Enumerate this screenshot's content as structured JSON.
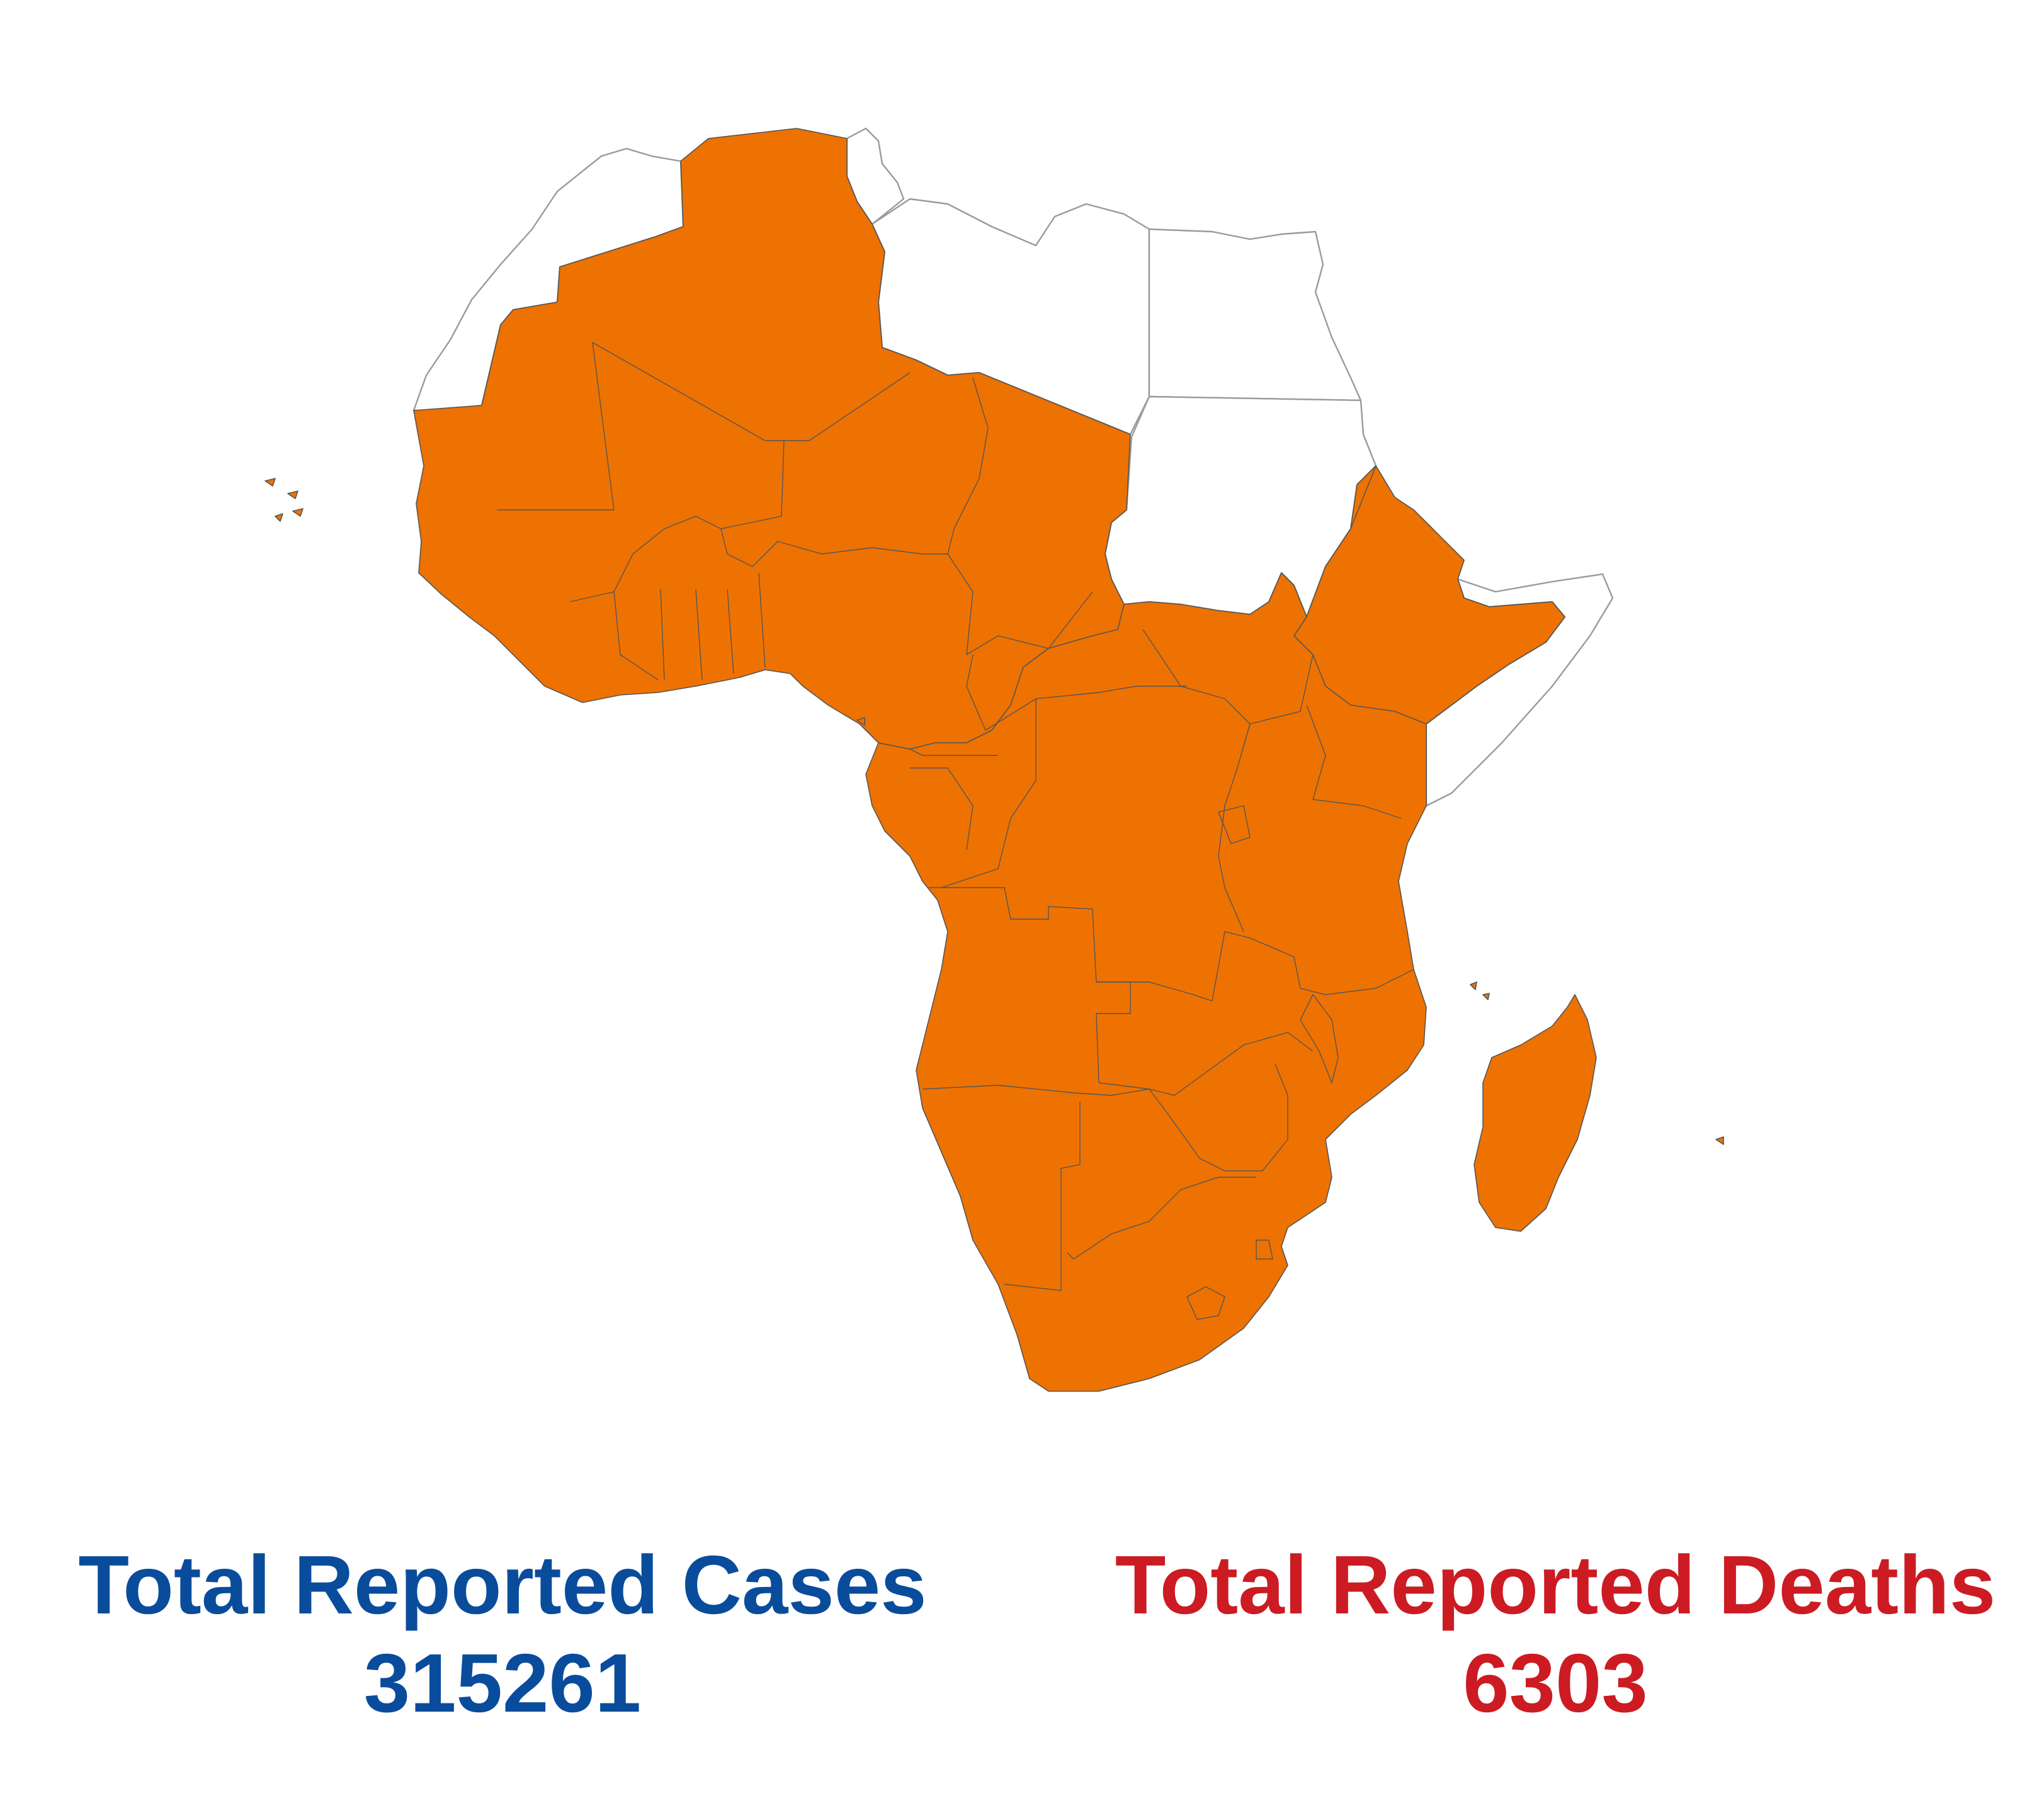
{
  "colors": {
    "affected": "#ee7202",
    "unaffected": "#ffffff",
    "border": "#555555",
    "outline": "#9a9a9a",
    "cases_text": "#0a4c9c",
    "deaths_text": "#cc1b22"
  },
  "stats": {
    "cases": {
      "label": "Total Reported Cases",
      "value": "315261"
    },
    "deaths": {
      "label": "Total Reported Deaths",
      "value": "6303"
    }
  }
}
